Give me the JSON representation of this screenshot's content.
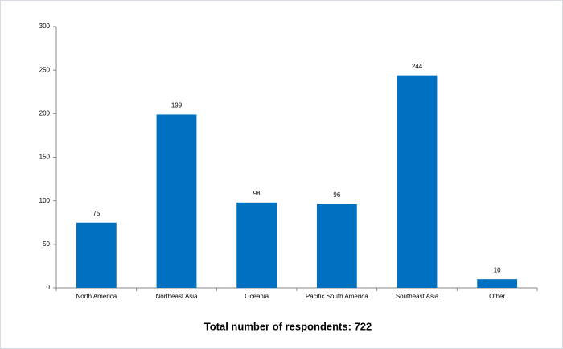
{
  "chart_data": {
    "type": "bar",
    "title": "Total number of respondents: 722",
    "categories": [
      "North America",
      "Northeast Asia",
      "Oceania",
      "Pacific South America",
      "Southeast Asia",
      "Other"
    ],
    "values": [
      75,
      199,
      98,
      96,
      244,
      10
    ],
    "color": "#0070c0",
    "ylim": [
      0,
      300
    ],
    "yticks": [
      0,
      50,
      100,
      150,
      200,
      250,
      300
    ],
    "grid": false,
    "data_labels": true
  }
}
